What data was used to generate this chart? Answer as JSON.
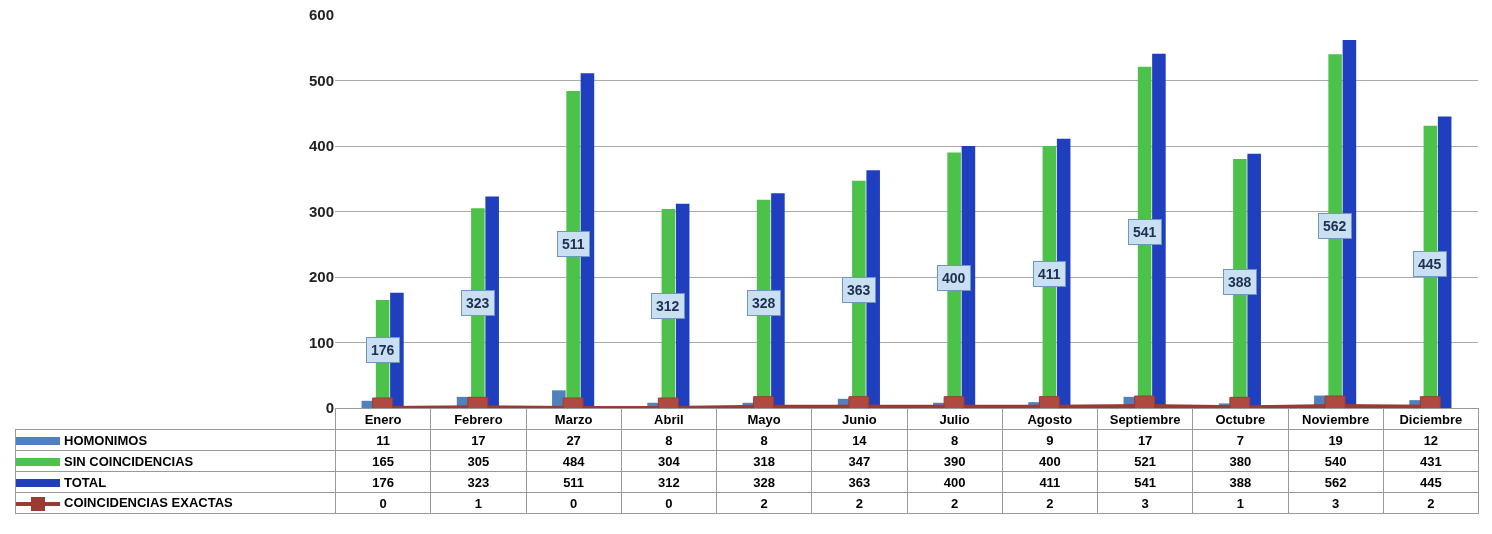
{
  "chart_data": {
    "type": "bar",
    "categories": [
      "Enero",
      "Febrero",
      "Marzo",
      "Abril",
      "Mayo",
      "Junio",
      "Julio",
      "Agosto",
      "Septiembre",
      "Octubre",
      "Noviembre",
      "Diciembre"
    ],
    "series": [
      {
        "name": "HOMONIMOS",
        "color": "#4f81bd",
        "values": [
          11,
          17,
          27,
          8,
          8,
          14,
          8,
          9,
          17,
          7,
          19,
          12
        ]
      },
      {
        "name": "SIN COINCIDENCIAS",
        "color": "#4cc24a",
        "values": [
          165,
          305,
          484,
          304,
          318,
          347,
          390,
          400,
          521,
          380,
          540,
          431
        ]
      },
      {
        "name": "TOTAL",
        "color": "#1f3fbf",
        "values": [
          176,
          323,
          511,
          312,
          328,
          363,
          400,
          411,
          541,
          388,
          562,
          445
        ]
      },
      {
        "name": "COINCIDENCIAS EXACTAS",
        "type": "line",
        "color": "#9b3a33",
        "values": [
          0,
          1,
          0,
          0,
          2,
          2,
          2,
          2,
          3,
          1,
          3,
          2
        ]
      }
    ],
    "annotations": [
      {
        "text": "176",
        "x": "Enero",
        "y": 88
      },
      {
        "text": "323",
        "x": "Febrero",
        "y": 160
      },
      {
        "text": "511",
        "x": "Marzo",
        "y": 250
      },
      {
        "text": "312",
        "x": "Abril",
        "y": 155
      },
      {
        "text": "328",
        "x": "Mayo",
        "y": 160
      },
      {
        "text": "363",
        "x": "Junio",
        "y": 180
      },
      {
        "text": "400",
        "x": "Julio",
        "y": 198
      },
      {
        "text": "411",
        "x": "Agosto",
        "y": 205
      },
      {
        "text": "541",
        "x": "Septiembre",
        "y": 268
      },
      {
        "text": "388",
        "x": "Octubre",
        "y": 192
      },
      {
        "text": "562",
        "x": "Noviembre",
        "y": 278
      },
      {
        "text": "445",
        "x": "Diciembre",
        "y": 220
      }
    ],
    "ylim": [
      0,
      600
    ],
    "yticks": [
      0,
      100,
      200,
      300,
      400,
      500,
      600
    ],
    "grid": "y",
    "legend": "bottom left",
    "marker": "square",
    "line_style": "solid",
    "data_labels": true
  }
}
